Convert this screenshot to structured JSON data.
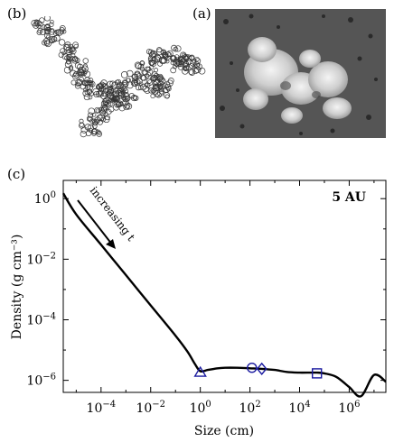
{
  "panels": {
    "b": {
      "label": "(b)"
    },
    "a": {
      "label": "(a)"
    },
    "c": {
      "label": "(c)"
    }
  },
  "chart_data": {
    "type": "line",
    "title": "",
    "xlabel": "Size (cm)",
    "ylabel": "Density (g cm⁻³)",
    "x_scale": "log",
    "y_scale": "log",
    "xlim": [
      3e-06,
      30000000.0
    ],
    "ylim": [
      4e-07,
      4.0
    ],
    "x_ticks": [
      {
        "value": 0.0001,
        "base": "10",
        "exp": "−4"
      },
      {
        "value": 0.01,
        "base": "10",
        "exp": "−2"
      },
      {
        "value": 1.0,
        "base": "10",
        "exp": "0"
      },
      {
        "value": 100.0,
        "base": "10",
        "exp": "2"
      },
      {
        "value": 10000.0,
        "base": "10",
        "exp": "4"
      },
      {
        "value": 1000000.0,
        "base": "10",
        "exp": "6"
      }
    ],
    "y_ticks": [
      {
        "value": 1.0,
        "base": "10",
        "exp": "0"
      },
      {
        "value": 0.01,
        "base": "10",
        "exp": "−2"
      },
      {
        "value": 0.0001,
        "base": "10",
        "exp": "−4"
      },
      {
        "value": 1e-06,
        "base": "10",
        "exp": "−6"
      }
    ],
    "series": [
      {
        "color": "#000000",
        "x": [
          3e-06,
          1e-05,
          0.0001,
          0.001,
          0.01,
          0.1,
          0.3,
          0.6,
          1,
          2,
          5,
          10,
          30,
          100,
          300,
          1000,
          3000,
          10000,
          50000,
          100000,
          300000,
          1000000,
          3000000,
          10000000,
          30000000
        ],
        "y": [
          1.5,
          0.3,
          0.03,
          0.003,
          0.0003,
          3e-05,
          9e-06,
          3.5e-06,
          2e-06,
          2.2e-06,
          2.5e-06,
          2.6e-06,
          2.6e-06,
          2.5e-06,
          2.4e-06,
          2.2e-06,
          1.9e-06,
          1.8e-06,
          1.8e-06,
          1.7e-06,
          1.3e-06,
          6e-07,
          3e-07,
          1.5e-06,
          9e-07
        ]
      }
    ],
    "markers": [
      {
        "shape": "triangle",
        "x": 1,
        "y": 1.8e-06,
        "color": "#1a1aa0"
      },
      {
        "shape": "circle",
        "x": 120,
        "y": 2.6e-06,
        "color": "#1a1aa0"
      },
      {
        "shape": "diamond",
        "x": 300,
        "y": 2.4e-06,
        "color": "#1a1aa0"
      },
      {
        "shape": "square",
        "x": 50000,
        "y": 1.7e-06,
        "color": "#1a1aa0"
      }
    ],
    "annotations": {
      "label": "5 AU",
      "trend_text": "increasing t"
    },
    "grid": false
  }
}
